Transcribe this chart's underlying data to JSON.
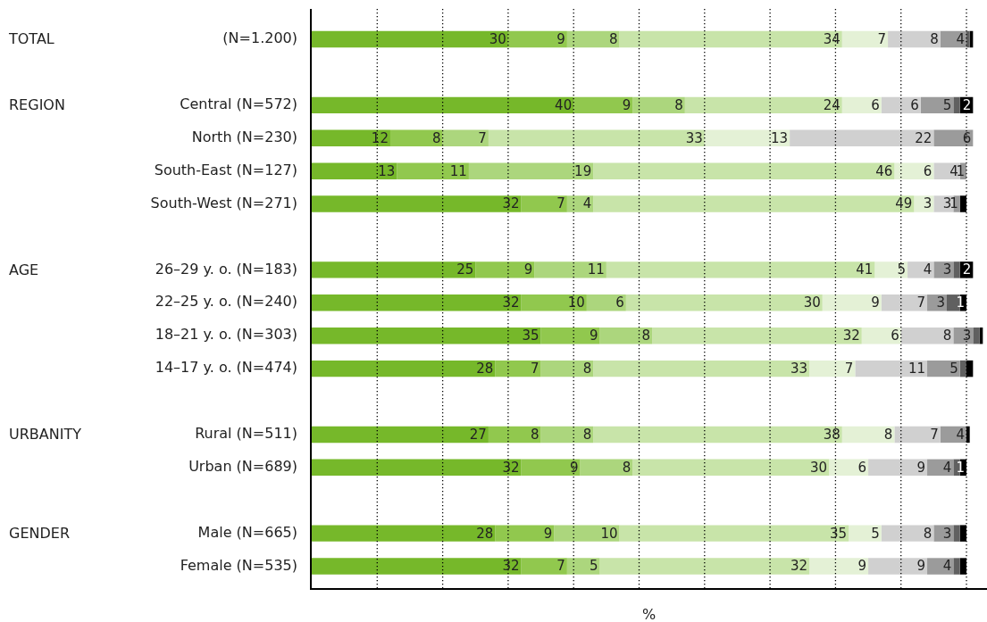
{
  "chart_data": {
    "type": "bar",
    "orientation": "horizontal",
    "stacked": true,
    "categories": [
      "(N=1.200)",
      null,
      "Central (N=572)",
      "North (N=230)",
      "South-East (N=127)",
      "South-West (N=271)",
      null,
      "26–29 y. o. (N=183)",
      "22–25 y. o. (N=240)",
      "18–21 y. o. (N=303)",
      "14–17 y. o. (N=474)",
      null,
      "Rural (N=511)",
      "Urban (N=689)",
      null,
      "Male (N=665)",
      "Female (N=535)"
    ],
    "xlabel": "%",
    "xlim": [
      0,
      103
    ],
    "xticks": [
      {
        "value": 10,
        "label": null
      },
      {
        "value": 20,
        "label": null
      },
      {
        "value": 30,
        "label": null
      },
      {
        "value": 40,
        "label": null
      },
      {
        "value": 50,
        "label": null
      },
      {
        "value": 60,
        "label": null
      },
      {
        "value": 70,
        "label": null
      },
      {
        "value": 80,
        "label": null
      },
      {
        "value": 90,
        "label": null
      },
      {
        "value": 100,
        "label": null
      }
    ],
    "grid": "x",
    "tick_labels": "y",
    "annotations": [
      "TOTAL",
      "REGION",
      "AGE",
      "URBANITY",
      "GENDER"
    ],
    "series": [
      {
        "color": "#76b82a",
        "values": [
          30,
          null,
          40,
          12,
          13,
          32,
          null,
          25,
          32,
          35,
          28,
          null,
          27,
          32,
          null,
          28,
          32
        ],
        "value_labels": [
          "30",
          null,
          "40",
          "12",
          "13",
          "32",
          null,
          "25",
          "32",
          "35",
          "28",
          null,
          "27",
          "32",
          null,
          "28",
          "32"
        ]
      },
      {
        "color": "#91c84e",
        "values": [
          9,
          null,
          9,
          8,
          11,
          7,
          null,
          9,
          10,
          9,
          7,
          null,
          8,
          9,
          null,
          9,
          7
        ],
        "value_labels": [
          "9",
          null,
          "9",
          "8",
          "11",
          "7",
          null,
          "9",
          "10",
          "9",
          "7",
          null,
          "8",
          "9",
          null,
          "9",
          "7"
        ]
      },
      {
        "color": "#acd67d",
        "values": [
          8,
          null,
          8,
          7,
          19,
          4,
          null,
          11,
          6,
          8,
          8,
          null,
          8,
          8,
          null,
          10,
          5
        ],
        "value_labels": [
          "8",
          null,
          "8",
          "7",
          "19",
          "4",
          null,
          "11",
          "6",
          "8",
          "8",
          null,
          "8",
          "8",
          null,
          "10",
          "5"
        ]
      },
      {
        "color": "#c8e4a9",
        "values": [
          34,
          null,
          24,
          33,
          46,
          49,
          null,
          41,
          30,
          32,
          33,
          null,
          38,
          30,
          null,
          35,
          32
        ],
        "value_labels": [
          "34",
          null,
          "24",
          "33",
          "46",
          "49",
          null,
          "41",
          "30",
          "32",
          "33",
          null,
          "38",
          "30",
          null,
          "35",
          "32"
        ]
      },
      {
        "color": "#e4f1d6",
        "values": [
          7,
          null,
          6,
          13,
          6,
          3,
          null,
          5,
          9,
          6,
          7,
          null,
          8,
          6,
          null,
          5,
          9
        ],
        "value_labels": [
          "7",
          null,
          "6",
          "13",
          "6",
          "3",
          null,
          "5",
          "9",
          "6",
          "7",
          null,
          "8",
          "6",
          null,
          "5",
          "9"
        ]
      },
      {
        "color": "#d0d0d0",
        "values": [
          8,
          null,
          6,
          22,
          4,
          3,
          null,
          4,
          7,
          8,
          11,
          null,
          7,
          9,
          null,
          8,
          9
        ],
        "value_labels": [
          "8",
          null,
          "6",
          "22",
          "4",
          "3",
          null,
          "4",
          "7",
          "8",
          "11",
          null,
          "7",
          "9",
          null,
          "8",
          "9"
        ]
      },
      {
        "color": "#9b9b9b",
        "values": [
          4,
          null,
          5,
          6,
          1,
          1,
          null,
          3,
          3,
          3,
          5,
          null,
          4,
          4,
          null,
          3,
          4
        ],
        "value_labels": [
          "4",
          null,
          "5",
          "6",
          "1",
          "1",
          null,
          "3",
          "3",
          "3",
          "5",
          null,
          "4",
          "4",
          null,
          "3",
          "4"
        ]
      },
      {
        "color": "#606060",
        "values": [
          0.5,
          null,
          1,
          null,
          null,
          null,
          null,
          1,
          2,
          1,
          1,
          null,
          null,
          1,
          null,
          1,
          1
        ]
      },
      {
        "color": "#000000",
        "values": [
          0.5,
          null,
          2,
          null,
          null,
          1,
          null,
          2,
          1,
          0.5,
          1,
          null,
          0.5,
          1,
          null,
          1,
          1
        ],
        "value_labels": [
          null,
          null,
          "2",
          null,
          null,
          null,
          null,
          "2",
          "1",
          null,
          null,
          null,
          null,
          "1",
          null,
          null,
          null
        ]
      }
    ]
  }
}
